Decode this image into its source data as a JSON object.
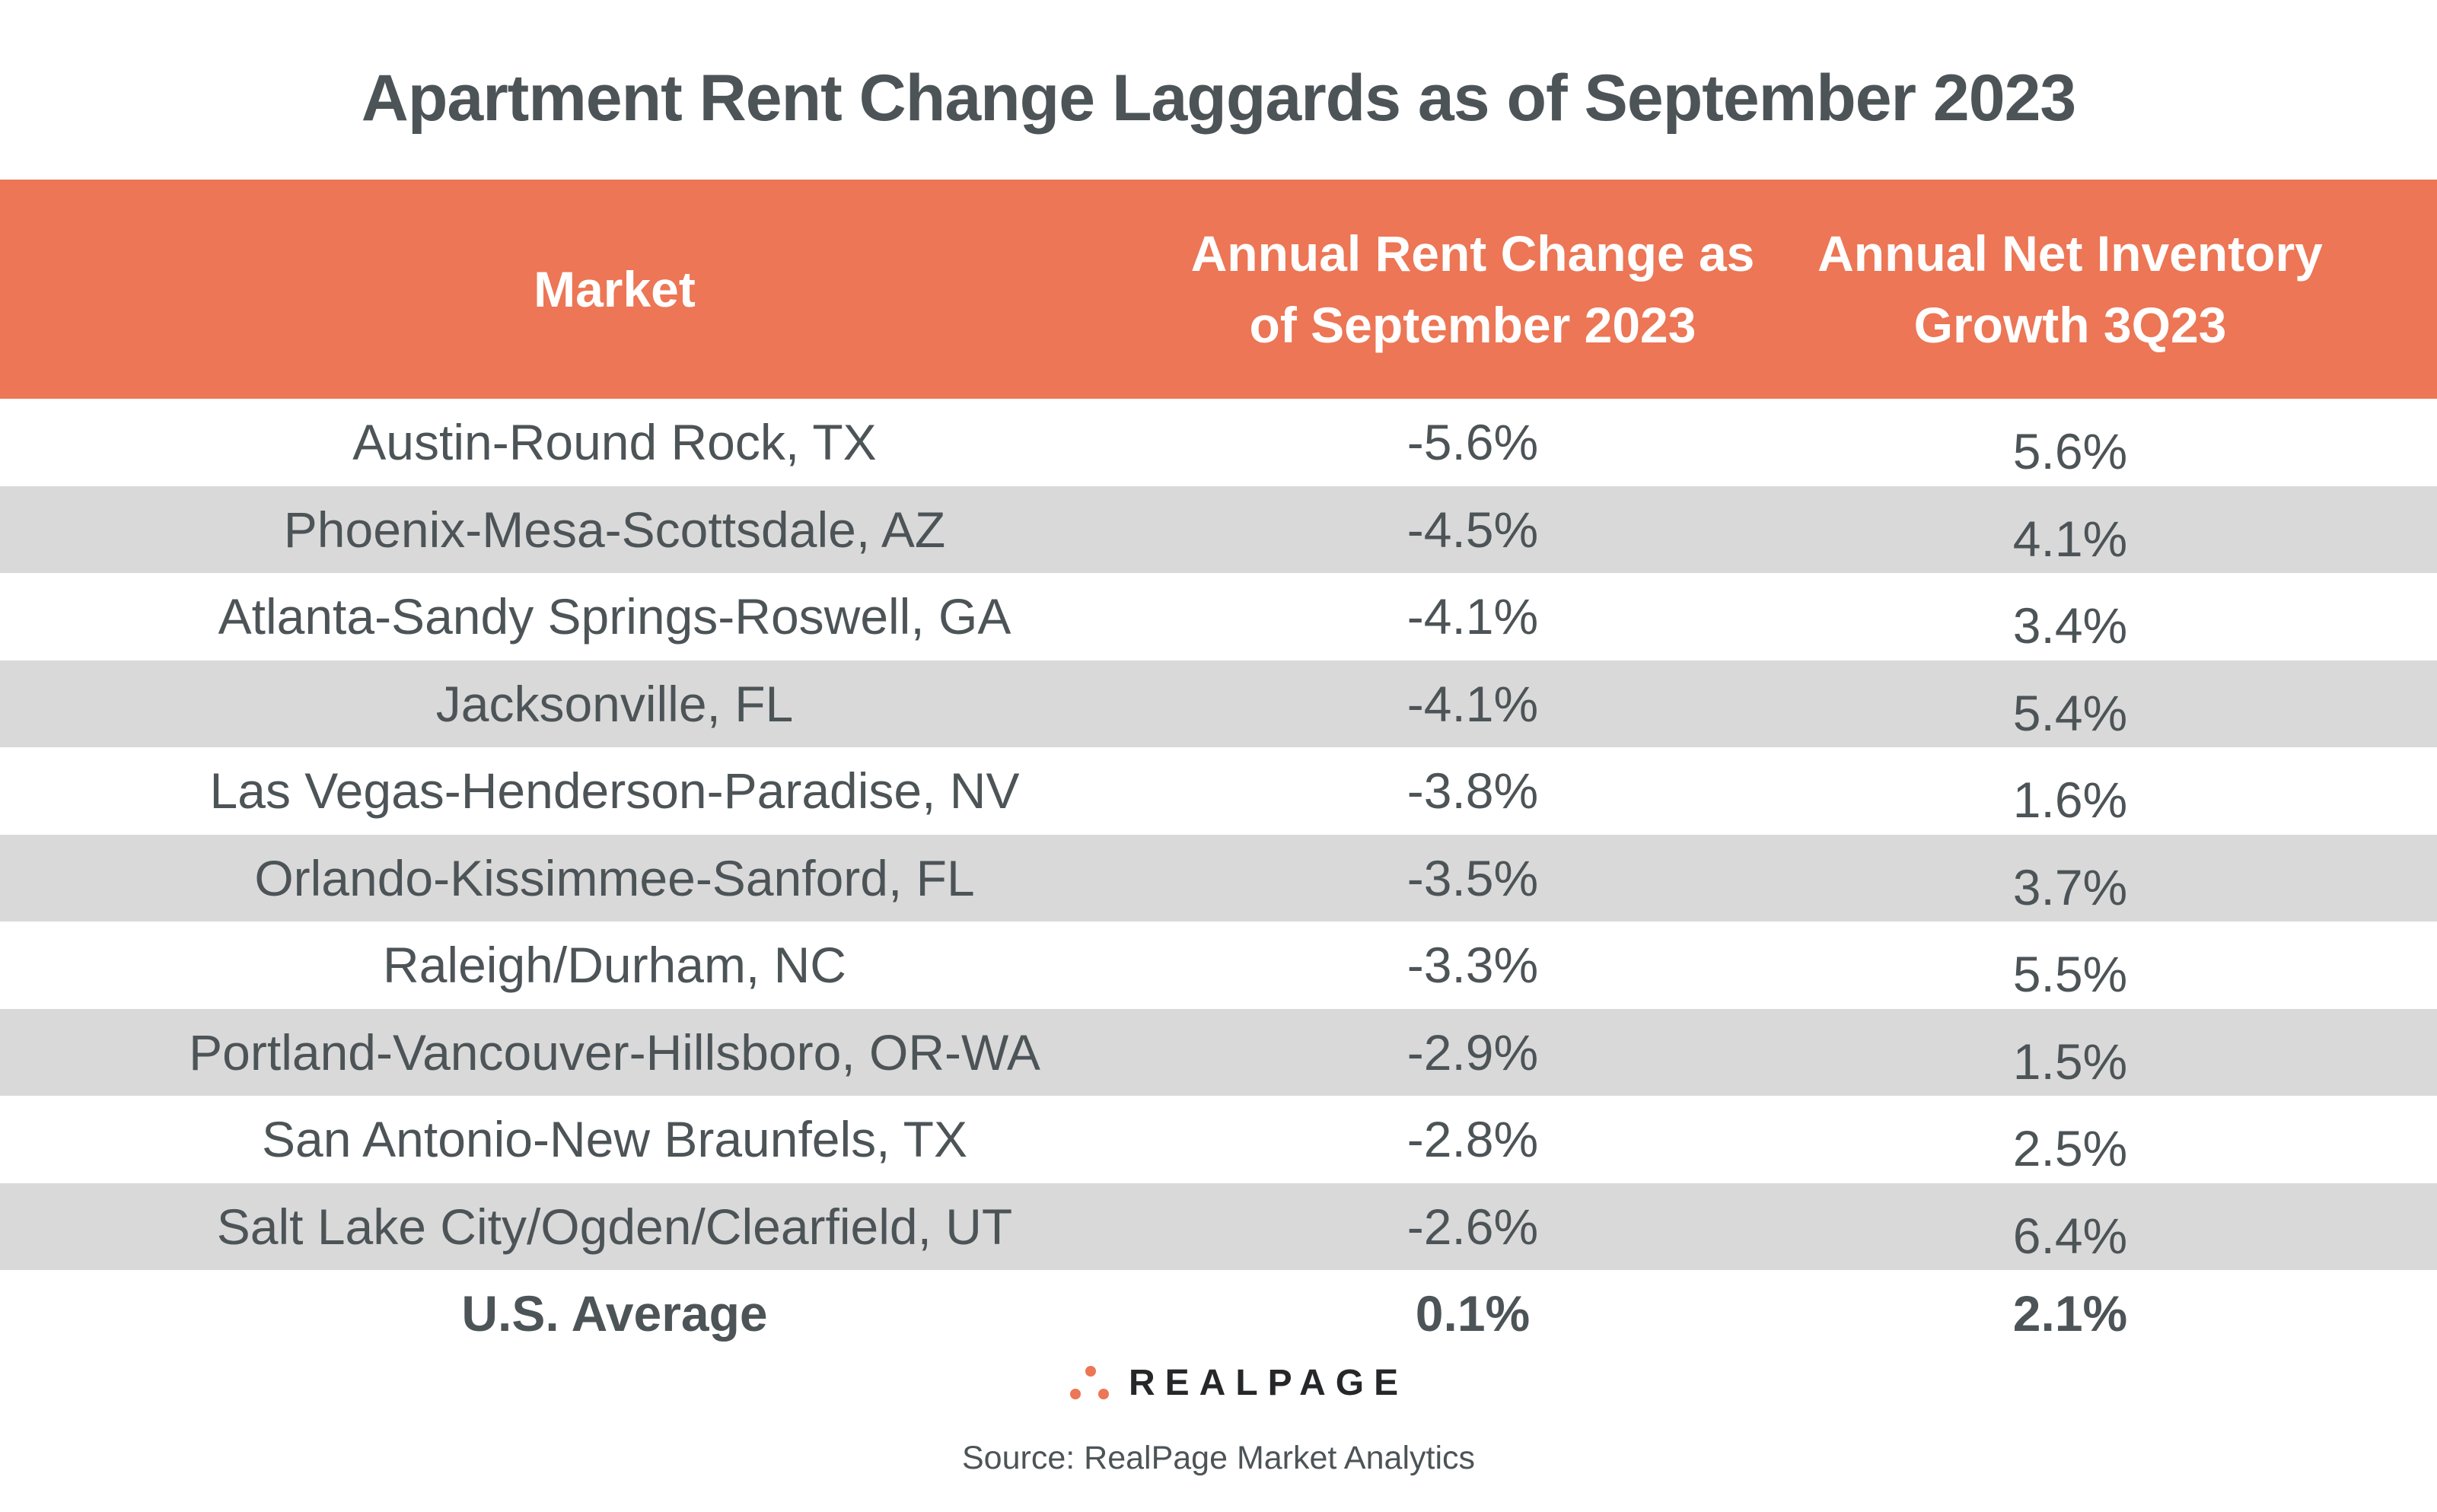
{
  "title": "Apartment Rent Change Laggards as of September 2023",
  "colors": {
    "header": "#ec7655",
    "alt_row": "#d9d9d9",
    "text": "#4d5457"
  },
  "table": {
    "headers": [
      "Market",
      "Annual Rent Change as of September 2023",
      "Annual Net Inventory Growth 3Q23"
    ],
    "rows": [
      {
        "market": "Austin-Round Rock, TX",
        "rent_change": "-5.6%",
        "inventory_growth": "5.6%"
      },
      {
        "market": "Phoenix-Mesa-Scottsdale, AZ",
        "rent_change": "-4.5%",
        "inventory_growth": "4.1%"
      },
      {
        "market": "Atlanta-Sandy Springs-Roswell, GA",
        "rent_change": "-4.1%",
        "inventory_growth": "3.4%"
      },
      {
        "market": "Jacksonville, FL",
        "rent_change": "-4.1%",
        "inventory_growth": "5.4%"
      },
      {
        "market": "Las Vegas-Henderson-Paradise, NV",
        "rent_change": "-3.8%",
        "inventory_growth": "1.6%"
      },
      {
        "market": "Orlando-Kissimmee-Sanford, FL",
        "rent_change": "-3.5%",
        "inventory_growth": "3.7%"
      },
      {
        "market": "Raleigh/Durham, NC",
        "rent_change": "-3.3%",
        "inventory_growth": "5.5%"
      },
      {
        "market": "Portland-Vancouver-Hillsboro, OR-WA",
        "rent_change": "-2.9%",
        "inventory_growth": "1.5%"
      },
      {
        "market": "San Antonio-New Braunfels, TX",
        "rent_change": "-2.8%",
        "inventory_growth": "2.5%"
      },
      {
        "market": "Salt Lake City/Ogden/Clearfield, UT",
        "rent_change": "-2.6%",
        "inventory_growth": "6.4%"
      }
    ],
    "average": {
      "market": "U.S. Average",
      "rent_change": "0.1%",
      "inventory_growth": "2.1%"
    }
  },
  "logo": {
    "text": "REALPAGE",
    "icon": "three-dots-logo-icon"
  },
  "source": "Source: RealPage Market Analytics"
}
